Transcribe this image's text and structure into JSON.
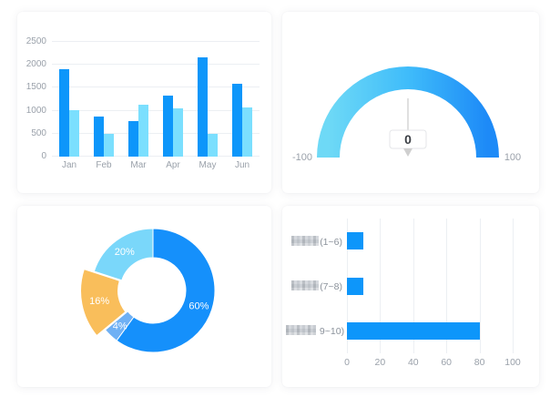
{
  "cards": {
    "monthly_bar": {
      "name": "monthly-bar-chart"
    },
    "gauge": {
      "name": "gauge-chart"
    },
    "donut": {
      "name": "donut-chart"
    },
    "score_bar": {
      "name": "score-bar-chart"
    }
  },
  "chart_data": [
    {
      "id": "monthly-bars",
      "type": "bar",
      "title": "",
      "categories": [
        "Jan",
        "Feb",
        "Mar",
        "Apr",
        "May",
        "Jun"
      ],
      "series": [
        {
          "name": "series-dark-blue",
          "color": "#0d96fa",
          "values": [
            1900,
            880,
            770,
            1330,
            2170,
            1580
          ]
        },
        {
          "name": "series-light-blue",
          "color": "#7bdffe",
          "values": [
            1010,
            500,
            1140,
            1060,
            500,
            1070
          ]
        }
      ],
      "ylim": [
        0,
        2500
      ],
      "yticks": [
        0,
        500,
        1000,
        1500,
        2000,
        2500
      ],
      "grid": true,
      "legend": "none"
    },
    {
      "id": "gauge",
      "type": "gauge",
      "min": -100,
      "max": 100,
      "value": 0,
      "min_label": "-100",
      "max_label": "100",
      "value_label": "0",
      "arc_gradient": [
        "#6ed9f6",
        "#1d8af7"
      ],
      "needle_color": "#d6d6d6",
      "pointer_color": "#cfcfcf"
    },
    {
      "id": "donut",
      "type": "pie",
      "inner_radius_ratio": 0.53,
      "start_angle_deg": 0,
      "slices": [
        {
          "label": "60%",
          "value": 60,
          "color": "#1590fb",
          "exploded": false
        },
        {
          "label": "4%",
          "value": 4,
          "color": "#6fb0f4",
          "exploded": false
        },
        {
          "label": "16%",
          "value": 16,
          "color": "#f9be5b",
          "exploded": true
        },
        {
          "label": "20%",
          "value": 20,
          "color": "#7ad7fa",
          "exploded": false
        }
      ]
    },
    {
      "id": "score-bars",
      "type": "bar-horizontal",
      "categories": [
        {
          "masked_prefix": true,
          "visible_text": "(1~6)",
          "mask_width": 30
        },
        {
          "masked_prefix": true,
          "visible_text": "(7~8)",
          "mask_width": 30
        },
        {
          "masked_prefix": true,
          "visible_text": " 9~10)",
          "mask_width": 33
        }
      ],
      "values": [
        10,
        10,
        80
      ],
      "color": "#0d96fa",
      "xlim": [
        0,
        100
      ],
      "xticks": [
        0,
        20,
        40,
        60,
        80,
        100
      ],
      "grid": true
    }
  ]
}
